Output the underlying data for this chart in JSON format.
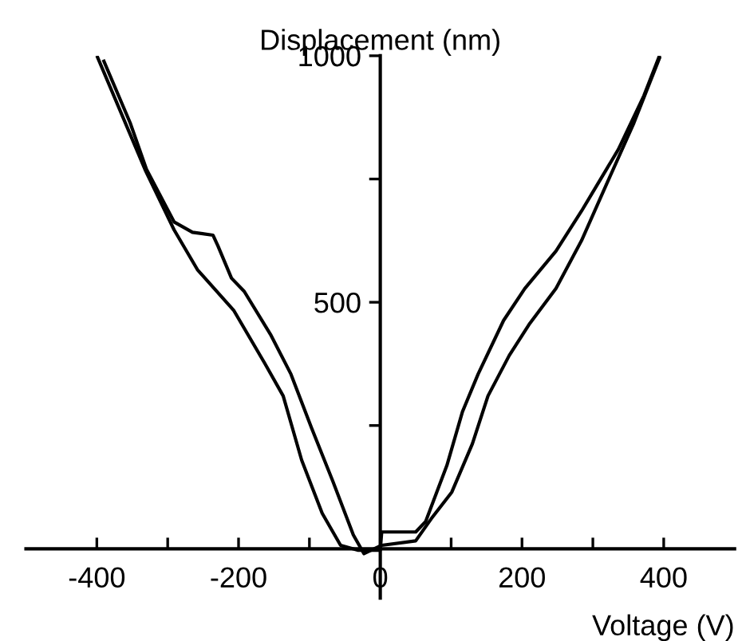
{
  "chart_data": {
    "type": "line",
    "xlabel": "Voltage (V)",
    "ylabel": "Displacement (nm)",
    "xlim": [
      -500,
      500
    ],
    "ylim": [
      -100,
      1000
    ],
    "xticks": [
      -400,
      {
        "value": -300,
        "label": null
      },
      -200,
      {
        "value": -100,
        "label": null
      },
      0,
      {
        "value": 100,
        "label": null
      },
      200,
      {
        "value": 300,
        "label": null
      },
      400
    ],
    "yticks": [
      {
        "value": 250,
        "label": null
      },
      500,
      {
        "value": 750,
        "label": null
      },
      1000
    ],
    "grid": false,
    "legend": false,
    "marker": "none",
    "line_style": "solid",
    "series": [
      {
        "color": "#000000",
        "x": [
          -399,
          -331,
          -291,
          -258,
          -207,
          -163,
          -137,
          -111,
          -82,
          -56,
          -31,
          0,
          2,
          50,
          64,
          94,
          116,
          138,
          174,
          204,
          248,
          284,
          336,
          372,
          394
        ],
        "values": [
          997,
          766,
          647,
          566,
          484,
          376,
          310,
          180,
          72,
          7,
          -3,
          -3,
          34,
          34,
          55,
          169,
          278,
          354,
          463,
          528,
          604,
          685,
          810,
          919,
          1000
        ]
      },
      {
        "color": "#000000",
        "x": [
          -390,
          -353,
          -330,
          -291,
          -265,
          -236,
          -229,
          -210,
          -192,
          -155,
          -126,
          -97,
          -67,
          -38,
          -23,
          2,
          50,
          72,
          101,
          130,
          152,
          182,
          211,
          248,
          284,
          321,
          358,
          394
        ],
        "values": [
          989,
          864,
          770,
          663,
          642,
          636,
          614,
          549,
          522,
          435,
          354,
          245,
          137,
          28,
          -10,
          7,
          16,
          61,
          115,
          213,
          310,
          392,
          457,
          528,
          625,
          745,
          864,
          995
        ]
      }
    ]
  }
}
